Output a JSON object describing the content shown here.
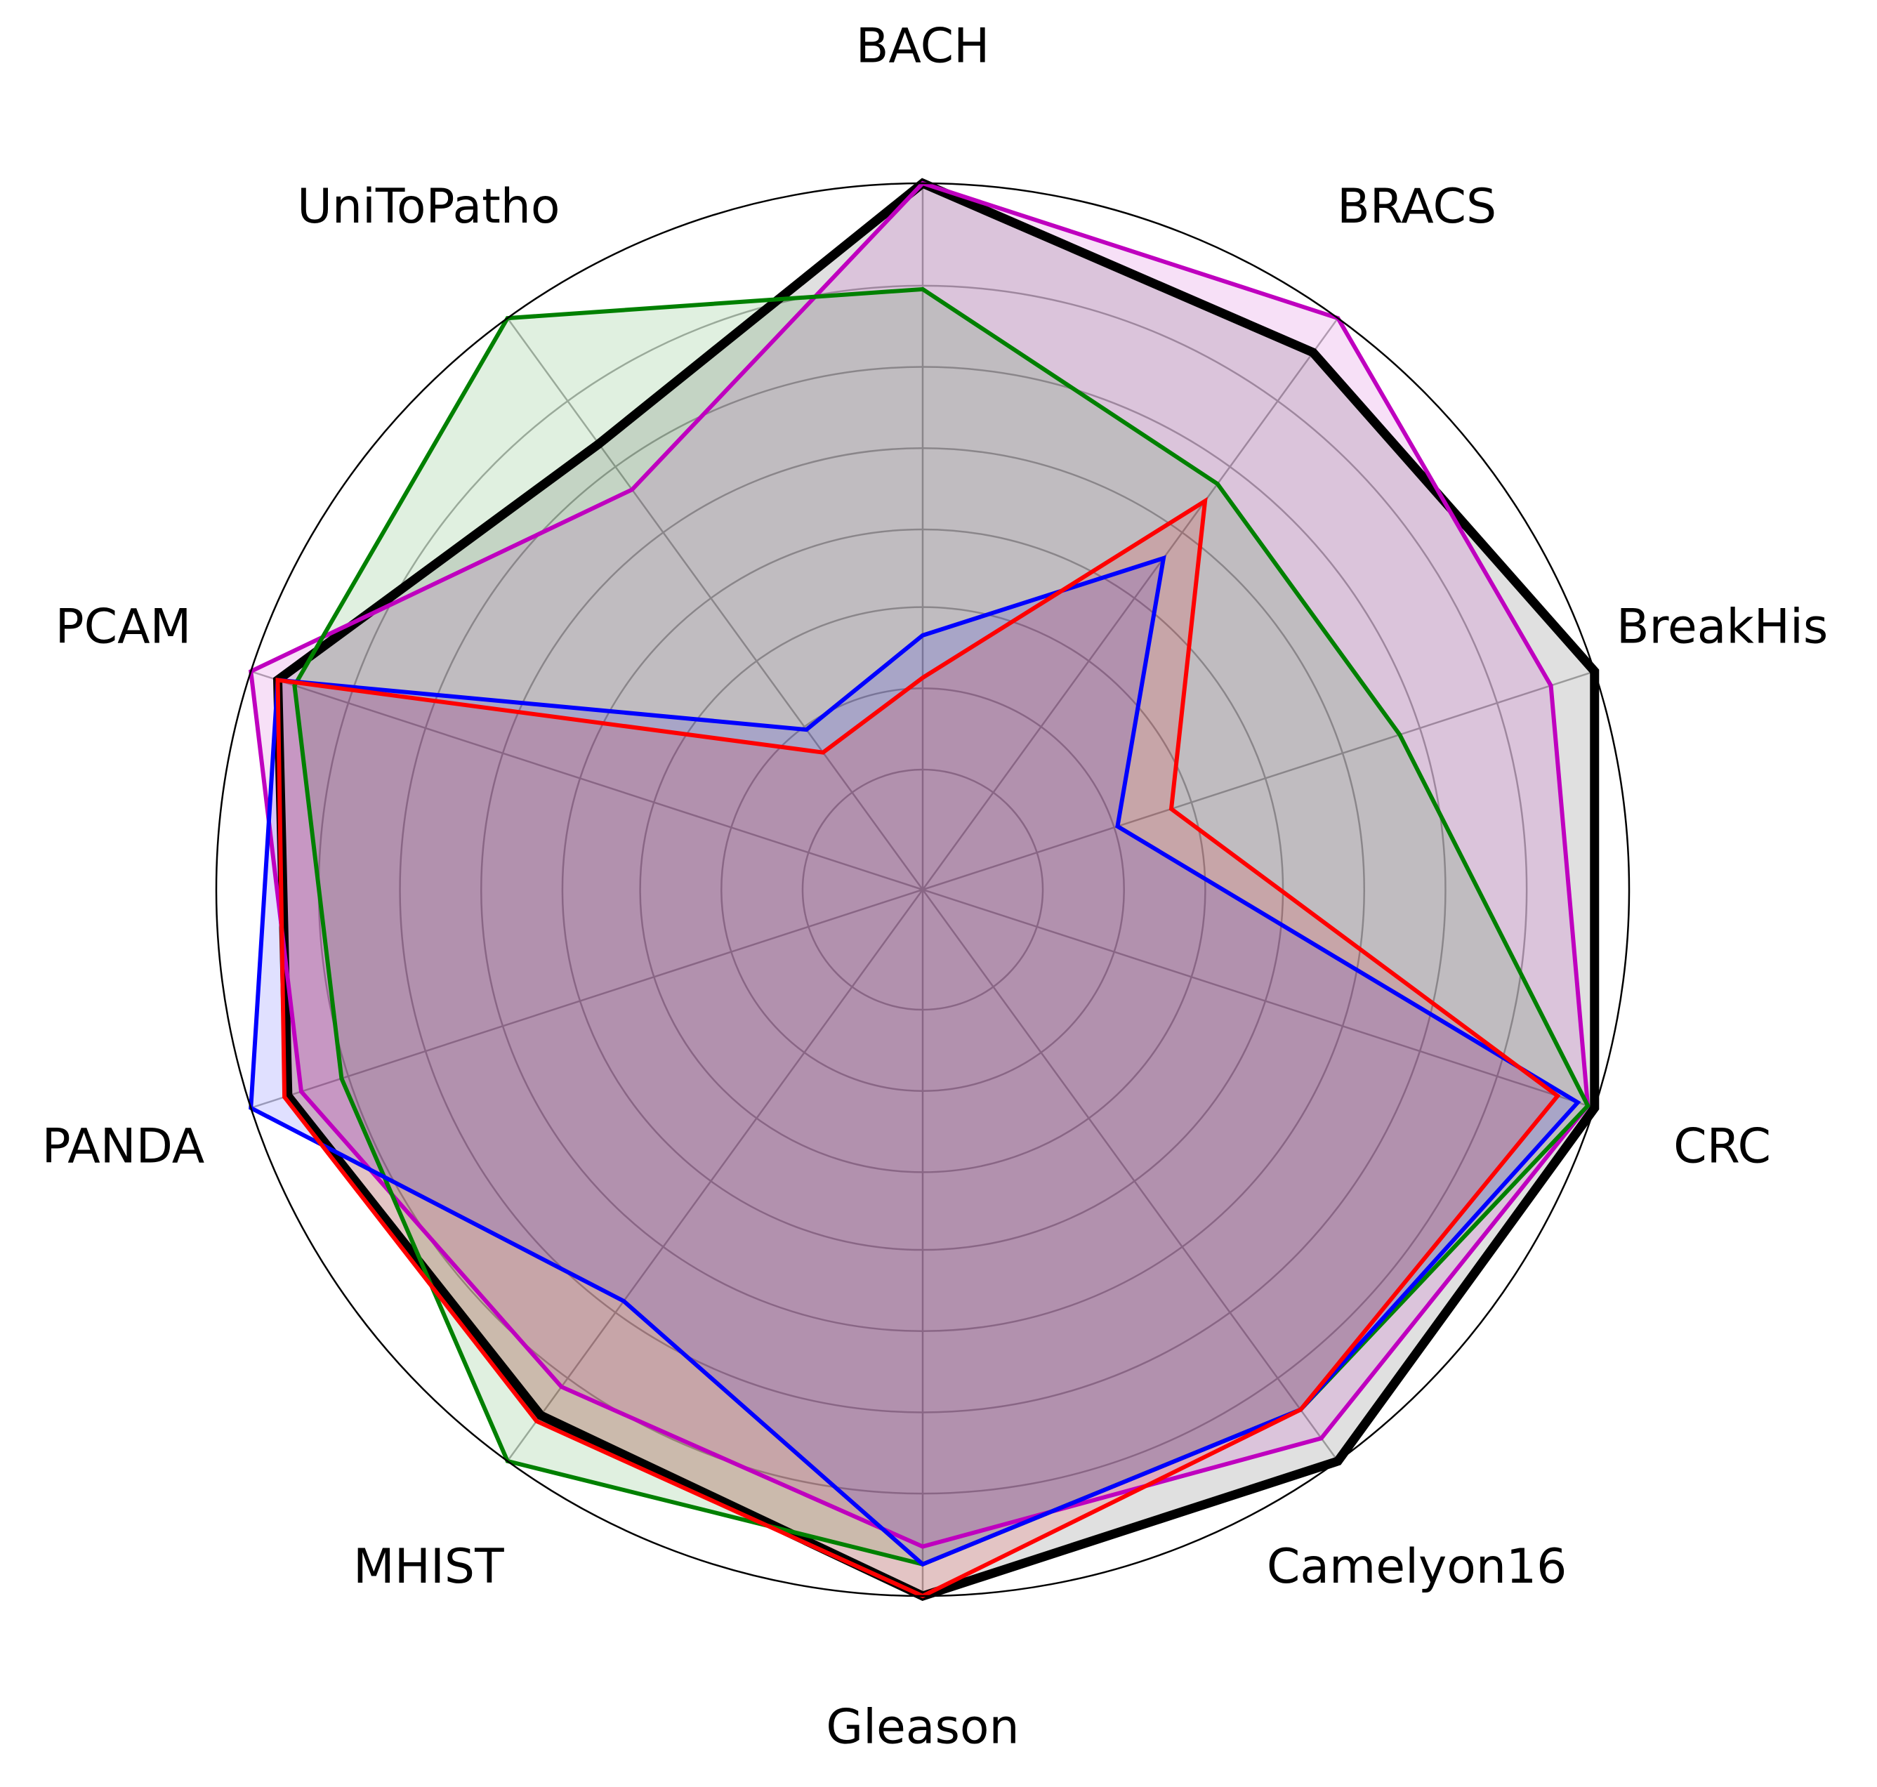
{
  "chart_data": {
    "type": "radar",
    "categories": [
      "BACH",
      "BRACS",
      "BreakHis",
      "CRC",
      "Camelyon16",
      "Gleason",
      "MHIST",
      "PANDA",
      "PCAM",
      "UniToPatho"
    ],
    "rlim": [
      0,
      1
    ],
    "rticks": [
      0.17,
      0.285,
      0.4,
      0.51,
      0.625,
      0.74,
      0.855
    ],
    "grid": true,
    "series": [
      {
        "color": "#000000",
        "values": [
          1.0,
          0.94,
          1.0,
          1.0,
          1.0,
          1.0,
          0.92,
          0.945,
          0.96,
          0.78
        ]
      },
      {
        "color": "#bf00bf",
        "values": [
          1.0,
          1.0,
          0.935,
          0.99,
          0.96,
          0.93,
          0.87,
          0.925,
          1.0,
          0.7
        ]
      },
      {
        "color": "#008000",
        "values": [
          0.85,
          0.71,
          0.71,
          0.99,
          0.91,
          0.955,
          1.0,
          0.865,
          0.935,
          1.0
        ]
      },
      {
        "color": "#0000ff",
        "values": [
          0.36,
          0.58,
          0.29,
          0.975,
          0.91,
          0.955,
          0.72,
          1.0,
          0.96,
          0.28
        ]
      },
      {
        "color": "#ff0000",
        "values": [
          0.3,
          0.68,
          0.37,
          0.945,
          0.91,
          1.0,
          0.93,
          0.95,
          0.96,
          0.24
        ]
      }
    ]
  }
}
